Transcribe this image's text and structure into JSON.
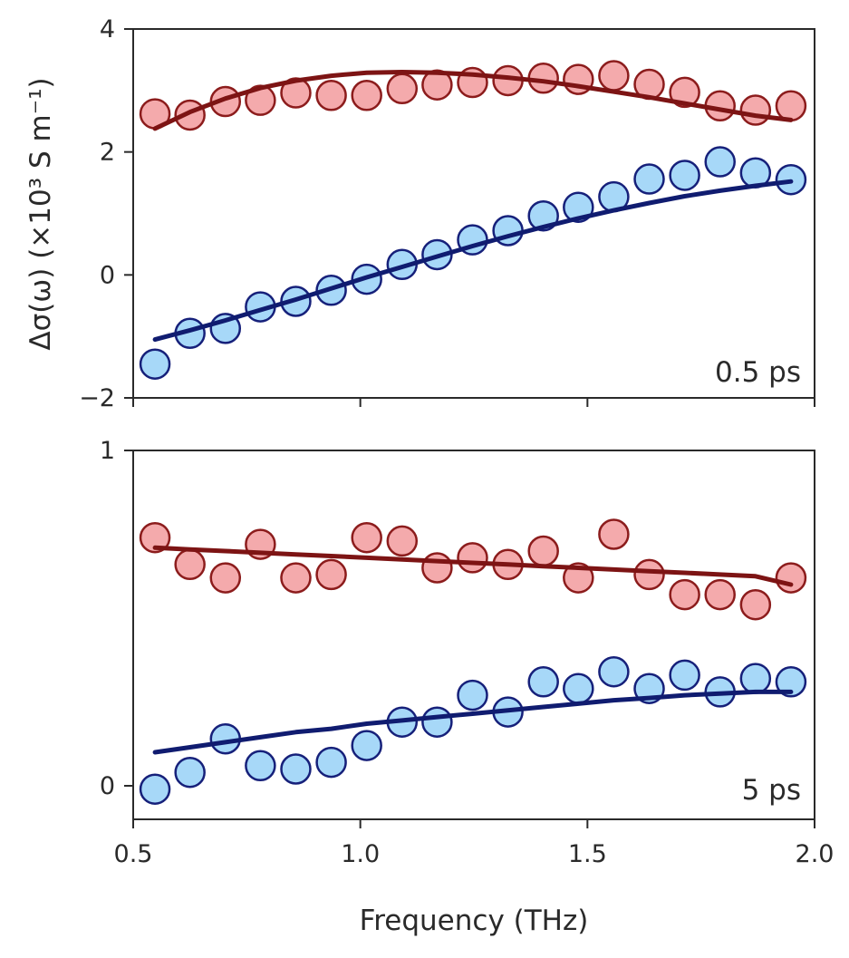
{
  "colors": {
    "series_1_fill": "#f4aaac",
    "series_1_stroke": "#8c1c1c",
    "series_1_fit": "#7d1414",
    "series_2_fill": "#a7d8f8",
    "series_2_stroke": "#16207a",
    "series_2_fit": "#101c70",
    "axis": "#2a2a2a"
  },
  "chart_data": [
    {
      "type": "scatter",
      "panel_label": "0.5 ps",
      "ylabel": "Δσ(ω) (×10³ S m⁻¹)",
      "xlabel": "Frequency (THz)",
      "xlim": [
        0.5,
        2.0
      ],
      "ylim": [
        -2,
        4
      ],
      "xticks": [
        0.5,
        1.0,
        1.5,
        2.0
      ],
      "yticks": [
        -2,
        0,
        2,
        4
      ],
      "ytick_labels": [
        "−2",
        "0",
        "2",
        "4"
      ],
      "x": [
        0.548,
        0.625,
        0.703,
        0.78,
        0.858,
        0.936,
        1.014,
        1.092,
        1.169,
        1.247,
        1.325,
        1.403,
        1.48,
        1.558,
        1.636,
        1.714,
        1.792,
        1.87,
        1.948
      ],
      "series": [
        {
          "values": [
            2.62,
            2.6,
            2.82,
            2.84,
            2.96,
            2.92,
            2.92,
            3.03,
            3.09,
            3.13,
            3.16,
            3.2,
            3.18,
            3.24,
            3.1,
            2.97,
            2.75,
            2.68,
            2.75
          ],
          "fit": [
            2.38,
            2.65,
            2.87,
            3.04,
            3.16,
            3.24,
            3.29,
            3.3,
            3.29,
            3.26,
            3.21,
            3.15,
            3.07,
            2.98,
            2.89,
            2.79,
            2.69,
            2.59,
            2.52
          ]
        },
        {
          "values": [
            -1.45,
            -0.95,
            -0.87,
            -0.52,
            -0.43,
            -0.25,
            -0.07,
            0.17,
            0.33,
            0.57,
            0.72,
            0.96,
            1.1,
            1.27,
            1.56,
            1.62,
            1.84,
            1.66,
            1.55
          ],
          "fit": [
            -1.05,
            -0.9,
            -0.74,
            -0.57,
            -0.4,
            -0.22,
            -0.04,
            0.13,
            0.3,
            0.47,
            0.63,
            0.78,
            0.92,
            1.05,
            1.17,
            1.28,
            1.37,
            1.45,
            1.52
          ]
        }
      ]
    },
    {
      "type": "scatter",
      "panel_label": "5 ps",
      "xlabel": "Frequency (THz)",
      "xlim": [
        0.5,
        2.0
      ],
      "ylim": [
        -0.1,
        1.0
      ],
      "xticks": [
        0.5,
        1.0,
        1.5,
        2.0
      ],
      "xtick_labels": [
        "0.5",
        "1.0",
        "1.5",
        "2.0"
      ],
      "yticks": [
        0,
        1
      ],
      "ytick_labels": [
        "0",
        "1"
      ],
      "x": [
        0.548,
        0.625,
        0.703,
        0.78,
        0.858,
        0.936,
        1.014,
        1.092,
        1.169,
        1.247,
        1.325,
        1.403,
        1.48,
        1.558,
        1.636,
        1.714,
        1.792,
        1.87,
        1.948
      ],
      "series": [
        {
          "values": [
            0.74,
            0.66,
            0.62,
            0.72,
            0.62,
            0.63,
            0.74,
            0.73,
            0.65,
            0.68,
            0.66,
            0.7,
            0.62,
            0.75,
            0.63,
            0.57,
            0.57,
            0.54,
            0.62
          ],
          "fit": [
            0.71,
            0.705,
            0.7,
            0.695,
            0.69,
            0.685,
            0.68,
            0.675,
            0.67,
            0.665,
            0.66,
            0.655,
            0.65,
            0.645,
            0.64,
            0.635,
            0.63,
            0.625,
            0.6
          ]
        },
        {
          "values": [
            -0.01,
            0.04,
            0.14,
            0.06,
            0.05,
            0.07,
            0.12,
            0.19,
            0.19,
            0.27,
            0.22,
            0.31,
            0.29,
            0.34,
            0.29,
            0.33,
            0.28,
            0.32,
            0.31
          ],
          "fit": [
            0.1,
            0.115,
            0.13,
            0.145,
            0.16,
            0.17,
            0.185,
            0.195,
            0.205,
            0.215,
            0.225,
            0.235,
            0.245,
            0.255,
            0.262,
            0.27,
            0.275,
            0.28,
            0.28
          ]
        }
      ]
    }
  ]
}
